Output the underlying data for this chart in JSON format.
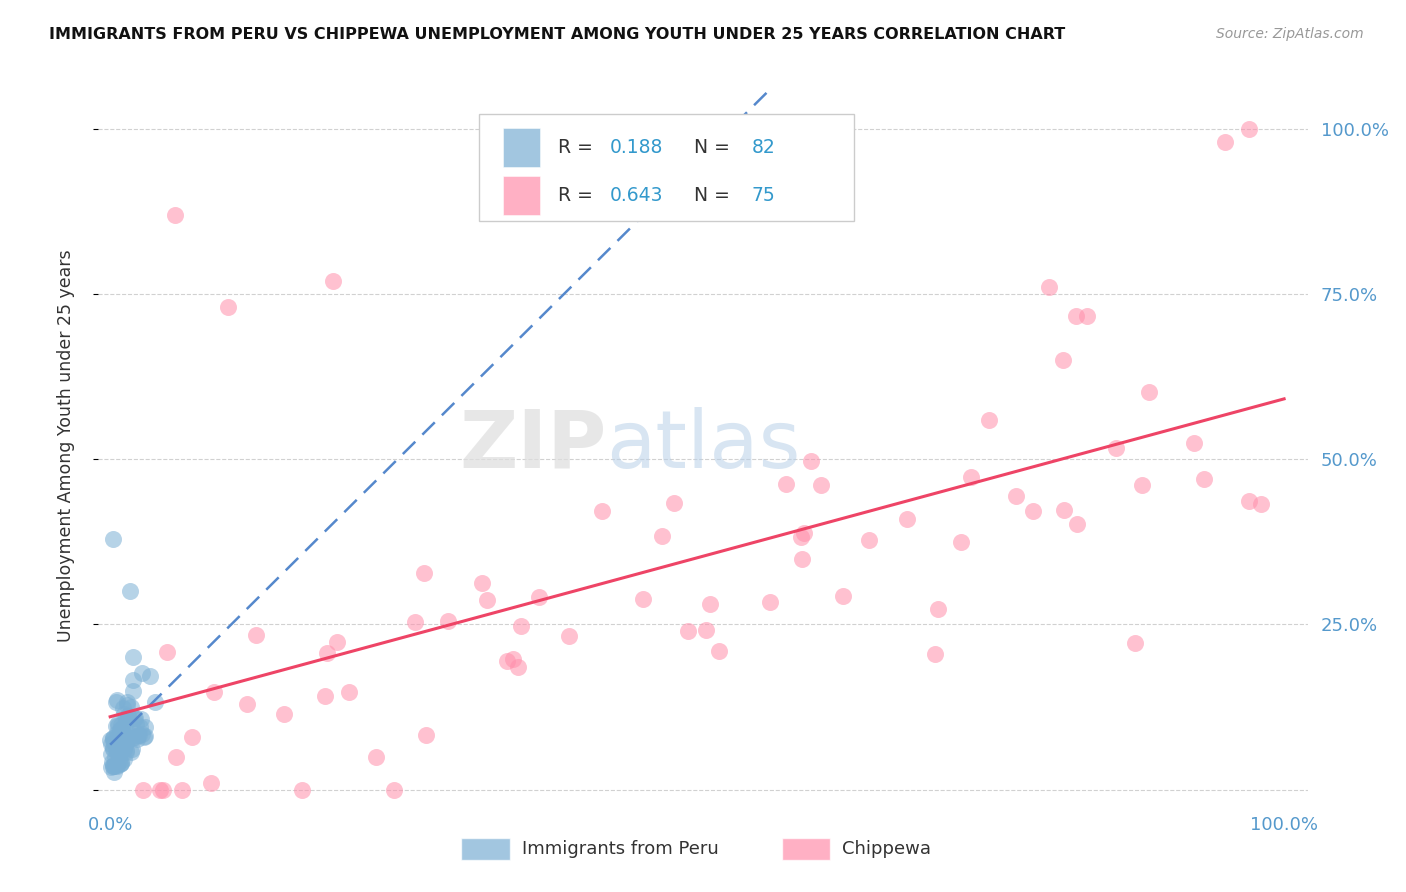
{
  "title": "IMMIGRANTS FROM PERU VS CHIPPEWA UNEMPLOYMENT AMONG YOUTH UNDER 25 YEARS CORRELATION CHART",
  "source": "Source: ZipAtlas.com",
  "ylabel": "Unemployment Among Youth under 25 years",
  "legend_label1": "Immigrants from Peru",
  "legend_label2": "Chippewa",
  "legend_r1": "R = ",
  "legend_v1": "0.188",
  "legend_n1_label": "N = ",
  "legend_v_n1": "82",
  "legend_r2": "R = ",
  "legend_v2": "0.643",
  "legend_n2_label": "N = ",
  "legend_v_n2": "75",
  "color_blue": "#7BAFD4",
  "color_pink": "#FF8FAB",
  "color_trendline_blue": "#5588CC",
  "color_trendline_pink": "#EE4466",
  "background_color": "#FFFFFF",
  "grid_color": "#CCCCCC",
  "tick_color": "#5599CC",
  "title_color": "#111111",
  "source_color": "#999999",
  "ylabel_color": "#333333"
}
